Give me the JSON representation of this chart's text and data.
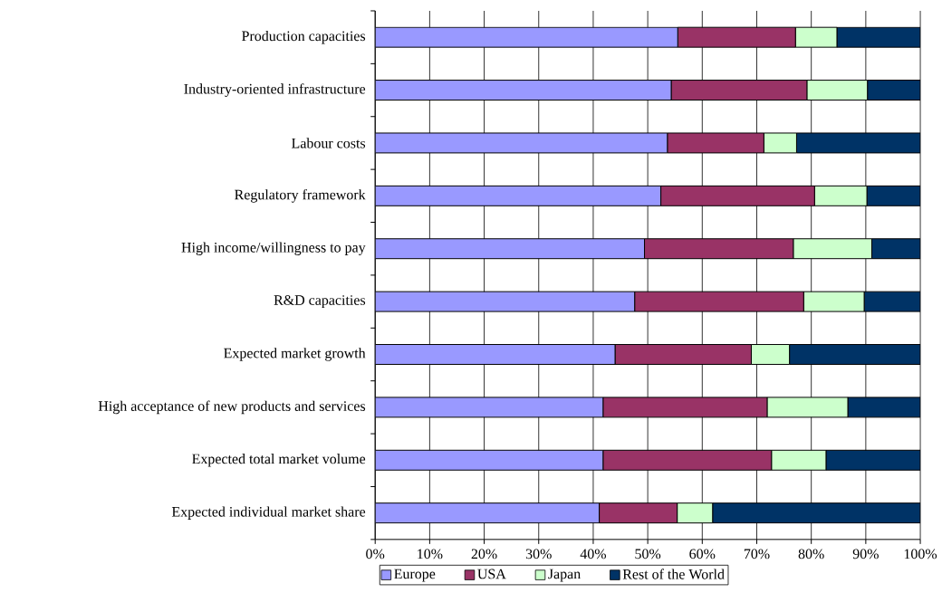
{
  "chart_data": {
    "type": "bar",
    "orientation": "horizontal",
    "stacked": true,
    "categories": [
      "Production capacities",
      "Industry-oriented infrastructure",
      "Labour costs",
      "Regulatory framework",
      "High income/willingness to pay",
      "R&D capacities",
      "Expected market growth",
      "High acceptance of new products and services",
      "Expected total market volume",
      "Expected individual market share"
    ],
    "series": [
      {
        "name": "Europe",
        "color": "#9999ff",
        "values": [
          55.5,
          54.3,
          53.6,
          52.4,
          49.4,
          47.6,
          44.0,
          41.8,
          41.8,
          41.1
        ]
      },
      {
        "name": "USA",
        "color": "#993366",
        "values": [
          21.6,
          24.9,
          17.7,
          28.2,
          27.3,
          31.0,
          25.0,
          30.1,
          30.9,
          14.3
        ]
      },
      {
        "name": "Japan",
        "color": "#ccffcc",
        "values": [
          7.6,
          11.1,
          6.0,
          9.6,
          14.4,
          11.1,
          7.0,
          14.8,
          10.0,
          6.5
        ]
      },
      {
        "name": "Rest of the World",
        "color": "#003366",
        "values": [
          15.3,
          9.7,
          22.7,
          9.8,
          8.9,
          10.3,
          24.0,
          13.3,
          17.3,
          38.1
        ]
      }
    ],
    "xlim": [
      0,
      100
    ],
    "xticks": [
      {
        "value": 0,
        "label": "0%"
      },
      {
        "value": 10,
        "label": "10%"
      },
      {
        "value": 20,
        "label": "20%"
      },
      {
        "value": 30,
        "label": "30%"
      },
      {
        "value": 40,
        "label": "40%"
      },
      {
        "value": 50,
        "label": "50%"
      },
      {
        "value": 60,
        "label": "60%"
      },
      {
        "value": 70,
        "label": "70%"
      },
      {
        "value": 80,
        "label": "80%"
      },
      {
        "value": 90,
        "label": "90%"
      },
      {
        "value": 100,
        "label": "100%"
      }
    ],
    "grid": "x",
    "legend": "bottom"
  }
}
